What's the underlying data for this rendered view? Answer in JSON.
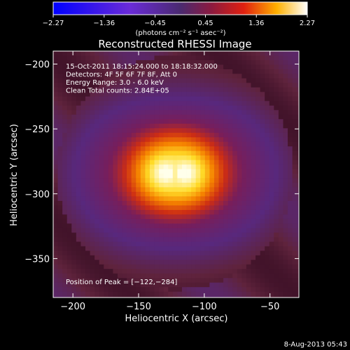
{
  "chart_data": {
    "type": "heatmap",
    "title": "Reconstructed RHESSI Image",
    "xlabel": "Heliocentric X (arcsec)",
    "ylabel": "Heliocentric Y (arcsec)",
    "xlim": [
      -215,
      -28
    ],
    "ylim": [
      -380,
      -190
    ],
    "x_ticks": [
      -200,
      -150,
      -100,
      -50
    ],
    "y_ticks": [
      -200,
      -250,
      -300,
      -350
    ],
    "x_tick_labels": [
      "−200",
      "−150",
      "−100",
      "−50"
    ],
    "y_tick_labels": [
      "−200",
      "−250",
      "−300",
      "−350"
    ],
    "colorbar": {
      "range": [
        -2.27,
        2.27
      ],
      "ticks": [
        -2.27,
        -1.36,
        -0.45,
        0.45,
        1.36,
        2.27
      ],
      "tick_labels": [
        "−2.27",
        "−1.36",
        "−0.45",
        "0.45",
        "1.36",
        "2.27"
      ],
      "unit_text": "(photons cm⁻² s⁻¹ asec⁻²)"
    },
    "info_lines": [
      "15-Oct-2011 18:15:24.000 to 18:18:32.000",
      "Detectors: 4F 5F 6F 7F 8F, Att 0",
      "Energy Range: 3.0 - 6.0 keV",
      "Clean    Total counts: 2.84E+05"
    ],
    "peak": {
      "x": -122,
      "y": -284
    },
    "peak_label": "Position of Peak = [−122,−284]",
    "source_width_arcsec": 22,
    "ring_radius_arcsec": 72,
    "timestamp": "8-Aug-2013 05:43",
    "colors": {
      "background": "#000000",
      "neg": "#0000ff",
      "low": "#5a2a7a",
      "mid": "#d23a10",
      "high": "#ffff80",
      "top": "#ffffff"
    }
  }
}
